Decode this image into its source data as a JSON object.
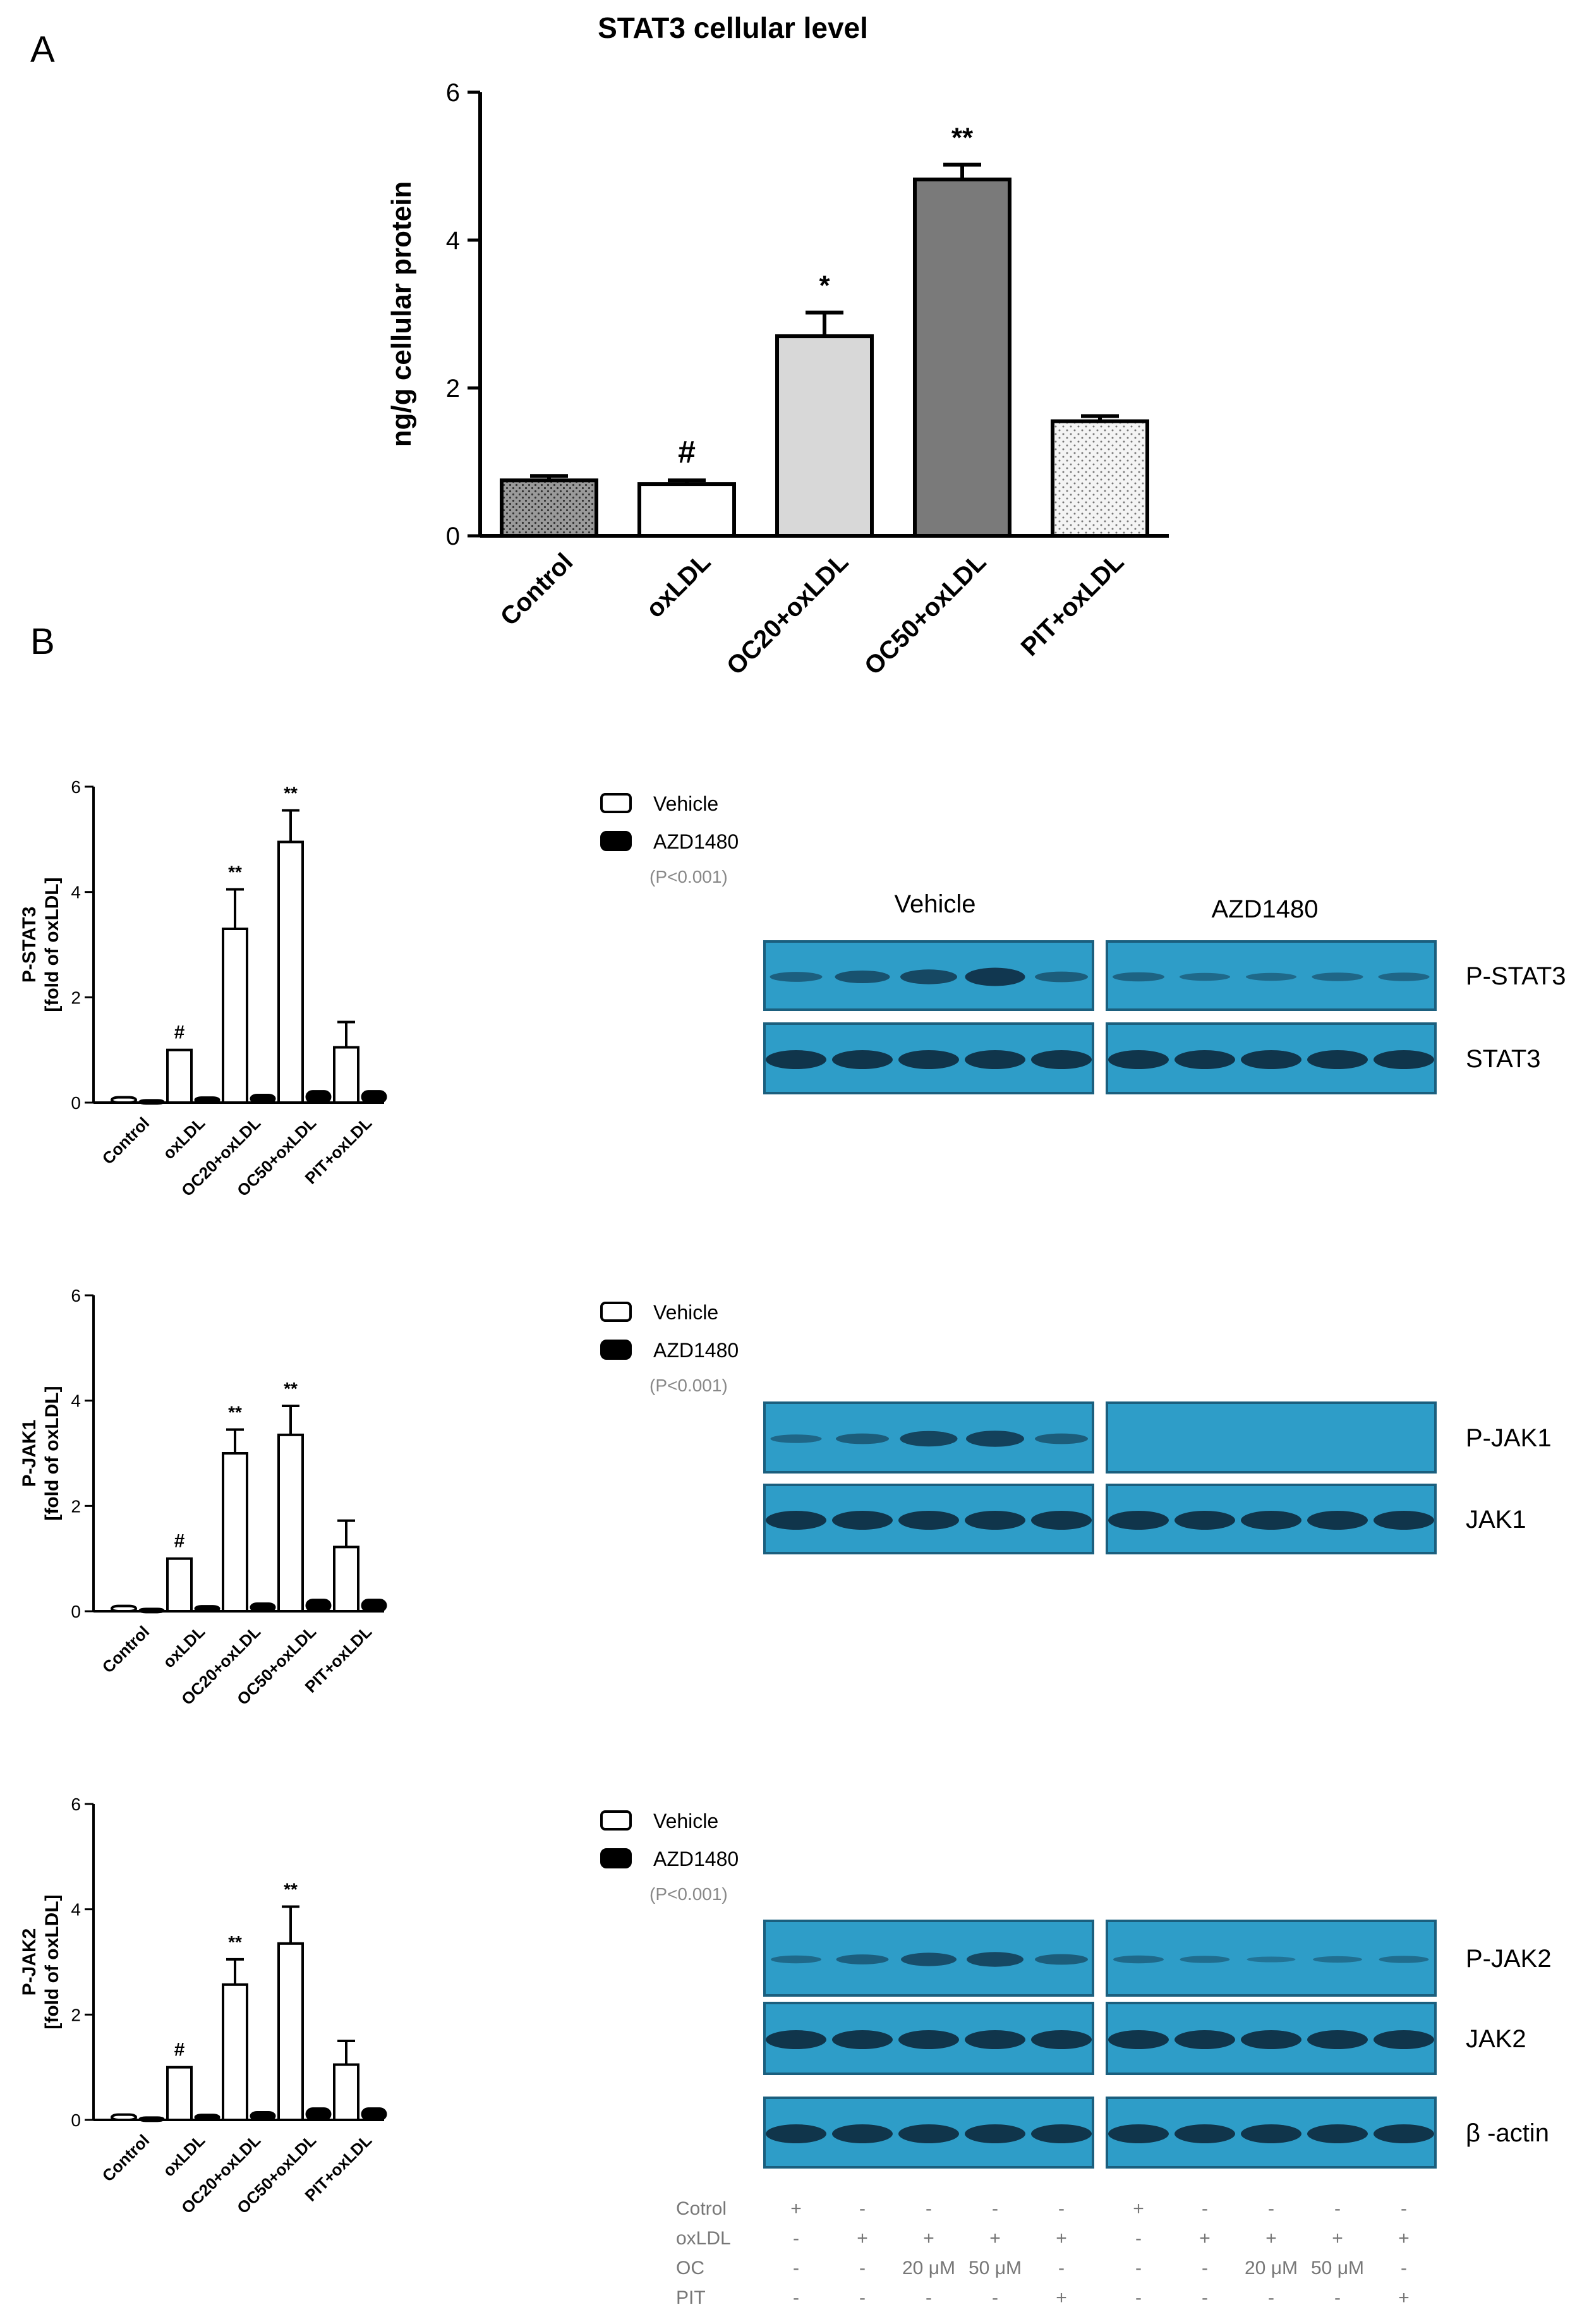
{
  "panels": {
    "a": "A",
    "b": "B"
  },
  "chart_data": [
    {
      "id": "a",
      "type": "bar",
      "title": "STAT3 cellular level",
      "xlabel": "",
      "ylabel": "ng/g cellular protein",
      "ylim": [
        0,
        6
      ],
      "yticks": [
        "0",
        "2",
        "4",
        "6"
      ],
      "categories": [
        "Control",
        "oxLDL",
        "OC20+oxLDL",
        "OC50+oxLDL",
        "PIT+oxLDL"
      ],
      "values": [
        0.75,
        0.7,
        2.7,
        4.82,
        1.55
      ],
      "errors": [
        0.06,
        0.05,
        0.32,
        0.2,
        0.07
      ],
      "annotations": [
        "",
        "#",
        "*",
        "**",
        ""
      ],
      "fills": [
        "dark-dotted",
        "white",
        "light-gray",
        "gray",
        "dotted"
      ],
      "colors": {
        "gray": "#7a7a7a",
        "light_gray": "#d8d8d8",
        "dark_dotted": "#555555"
      }
    },
    {
      "id": "b1",
      "type": "bar",
      "title": "",
      "ylabel_line1": "P-STAT3",
      "ylabel_line2": "[fold of oxLDL]",
      "ylim": [
        0,
        6
      ],
      "yticks": [
        "0",
        "2",
        "4",
        "6"
      ],
      "categories": [
        "Control",
        "oxLDL",
        "OC20+oxLDL",
        "OC50+oxLDL",
        "PIT+oxLDL"
      ],
      "series": [
        {
          "name": "Vehicle",
          "values": [
            0.1,
            1.0,
            3.3,
            4.95,
            1.05
          ],
          "errors": [
            0.0,
            0.0,
            0.75,
            0.6,
            0.48
          ]
        },
        {
          "name": "AZD1480",
          "values": [
            0.05,
            0.1,
            0.15,
            0.22,
            0.22
          ],
          "errors": [
            0,
            0,
            0,
            0,
            0
          ]
        }
      ],
      "annotations": [
        "",
        "#",
        "**",
        "**",
        ""
      ],
      "legend_note": "(P<0.001)",
      "colors": {
        "vehicle": "#ffffff",
        "azd1480": "#000000"
      }
    },
    {
      "id": "b2",
      "type": "bar",
      "title": "",
      "ylabel_line1": "P-JAK1",
      "ylabel_line2": "[fold of oxLDL]",
      "ylim": [
        0,
        6
      ],
      "yticks": [
        "0",
        "2",
        "4",
        "6"
      ],
      "categories": [
        "Control",
        "oxLDL",
        "OC20+oxLDL",
        "OC50+oxLDL",
        "PIT+oxLDL"
      ],
      "series": [
        {
          "name": "Vehicle",
          "values": [
            0.1,
            1.0,
            3.0,
            3.35,
            1.22
          ],
          "errors": [
            0.0,
            0.0,
            0.45,
            0.55,
            0.5
          ]
        },
        {
          "name": "AZD1480",
          "values": [
            0.05,
            0.1,
            0.15,
            0.22,
            0.22
          ],
          "errors": [
            0,
            0,
            0,
            0,
            0
          ]
        }
      ],
      "annotations": [
        "",
        "#",
        "**",
        "**",
        ""
      ],
      "legend_note": "(P<0.001)",
      "colors": {
        "vehicle": "#ffffff",
        "azd1480": "#000000"
      }
    },
    {
      "id": "b3",
      "type": "bar",
      "title": "",
      "ylabel_line1": "P-JAK2",
      "ylabel_line2": "[fold of oxLDL]",
      "ylim": [
        0,
        6
      ],
      "yticks": [
        "0",
        "2",
        "4",
        "6"
      ],
      "categories": [
        "Control",
        "oxLDL",
        "OC20+oxLDL",
        "OC50+oxLDL",
        "PIT+oxLDL"
      ],
      "series": [
        {
          "name": "Vehicle",
          "values": [
            0.1,
            1.0,
            2.57,
            3.35,
            1.05
          ],
          "errors": [
            0.0,
            0.0,
            0.48,
            0.7,
            0.45
          ]
        },
        {
          "name": "AZD1480",
          "values": [
            0.05,
            0.1,
            0.15,
            0.22,
            0.22
          ],
          "errors": [
            0,
            0,
            0,
            0,
            0
          ]
        }
      ],
      "annotations": [
        "",
        "#",
        "**",
        "**",
        ""
      ],
      "legend_note": "(P<0.001)",
      "colors": {
        "vehicle": "#ffffff",
        "azd1480": "#000000"
      }
    }
  ],
  "blots": {
    "group_labels": [
      "Vehicle",
      "AZD1480"
    ],
    "colors": {
      "membrane": "#2e9dc8",
      "membrane_edge": "#1b5f7e",
      "band": "#0f2f45"
    },
    "rows": [
      {
        "label": "P-STAT3",
        "vehicle": [
          0.35,
          0.55,
          0.7,
          0.95,
          0.4
        ],
        "azd": [
          0.3,
          0.2,
          0.2,
          0.25,
          0.25
        ]
      },
      {
        "label": "STAT3",
        "vehicle": [
          1,
          1,
          1,
          1,
          1
        ],
        "azd": [
          1,
          1,
          1,
          1,
          1
        ]
      },
      {
        "label": "P-JAK1",
        "vehicle": [
          0.25,
          0.4,
          0.75,
          0.8,
          0.4
        ],
        "azd": [
          0,
          0,
          0,
          0,
          0
        ]
      },
      {
        "label": "JAK1",
        "vehicle": [
          1,
          1,
          1,
          1,
          1
        ],
        "azd": [
          1,
          1,
          1,
          1,
          1
        ]
      },
      {
        "label": "P-JAK2",
        "vehicle": [
          0.2,
          0.35,
          0.6,
          0.7,
          0.4
        ],
        "azd": [
          0.2,
          0.15,
          0.05,
          0.1,
          0.15
        ]
      },
      {
        "label": "JAK2",
        "vehicle": [
          1,
          1,
          1,
          1,
          1
        ],
        "azd": [
          1,
          1,
          1,
          1,
          1
        ]
      },
      {
        "label": "β -actin",
        "vehicle": [
          1,
          1,
          1,
          1,
          1
        ],
        "azd": [
          1,
          1,
          1,
          1,
          1
        ]
      }
    ],
    "treatment_rows": [
      {
        "label": "Cotrol",
        "cells": [
          "+",
          "-",
          "-",
          "-",
          "-",
          "+",
          "-",
          "-",
          "-",
          "-"
        ]
      },
      {
        "label": "oxLDL",
        "cells": [
          "-",
          "+",
          "+",
          "+",
          "+",
          "-",
          "+",
          "+",
          "+",
          "+"
        ]
      },
      {
        "label": "OC",
        "cells": [
          "-",
          "-",
          "20 μM",
          "50 μM",
          "-",
          "-",
          "-",
          "20 μM",
          "50 μM",
          "-"
        ]
      },
      {
        "label": "PIT",
        "cells": [
          "-",
          "-",
          "-",
          "-",
          "+",
          "-",
          "-",
          "-",
          "-",
          "+"
        ]
      }
    ]
  }
}
